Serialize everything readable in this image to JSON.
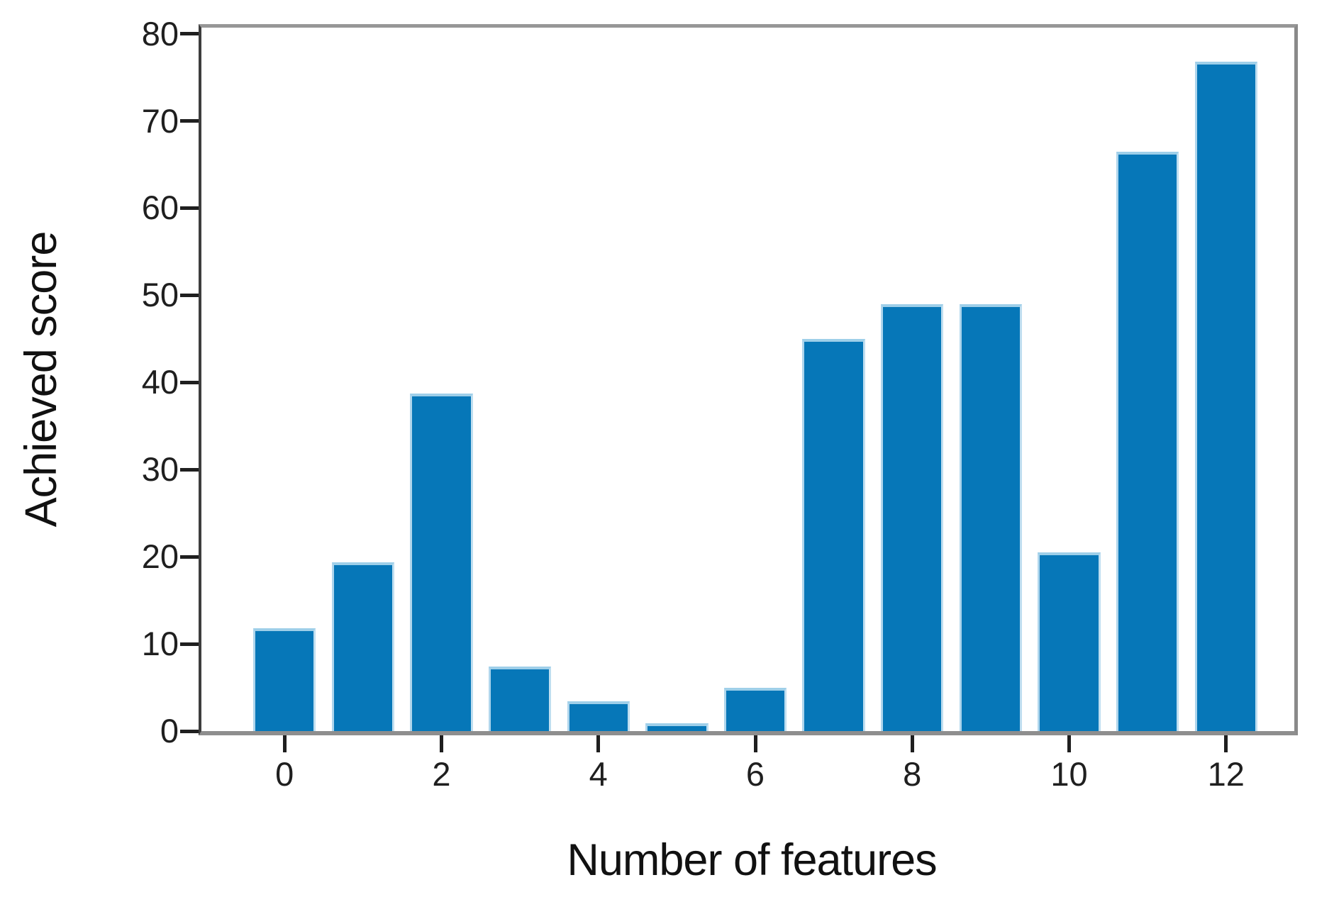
{
  "figure": {
    "background": "#ffffff"
  },
  "chart_data": {
    "type": "bar",
    "title": "",
    "xlabel": "Number of features",
    "ylabel": "Achieved score",
    "x": [
      0,
      1,
      2,
      3,
      4,
      5,
      6,
      7,
      8,
      9,
      10,
      11,
      12
    ],
    "values": [
      11.8,
      19.4,
      38.7,
      7.4,
      3.4,
      0.9,
      5.0,
      45.0,
      49.0,
      49.0,
      20.5,
      66.5,
      76.8
    ],
    "bar_width": 0.8,
    "x_tick_values": [
      0,
      2,
      4,
      6,
      8,
      10,
      12
    ],
    "x_tick_labels": [
      "0",
      "2",
      "4",
      "6",
      "8",
      "10",
      "12"
    ],
    "y_tick_values": [
      0,
      10,
      20,
      30,
      40,
      50,
      60,
      70,
      80
    ],
    "y_tick_labels": [
      "0",
      "10",
      "20",
      "30",
      "40",
      "50",
      "60",
      "70",
      "80"
    ],
    "xlim": [
      -1.06,
      12.87
    ],
    "ylim": [
      0,
      80.7
    ],
    "grid": false,
    "legend_position": "none",
    "colors": {
      "bar_fill": "#0677b8",
      "bar_edge": "#aed5ec",
      "tick": "#1f1f1f",
      "text": "#111111"
    }
  }
}
